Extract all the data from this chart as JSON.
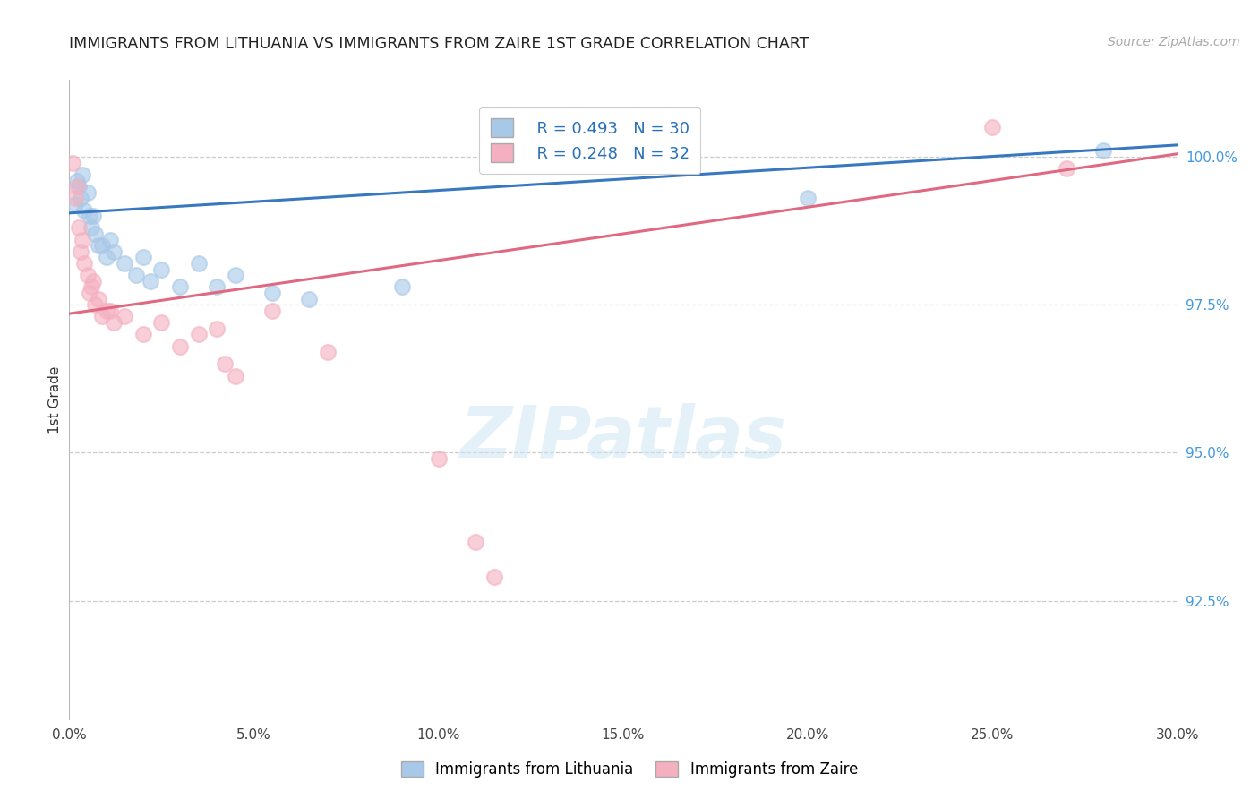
{
  "title": "IMMIGRANTS FROM LITHUANIA VS IMMIGRANTS FROM ZAIRE 1ST GRADE CORRELATION CHART",
  "source_text": "Source: ZipAtlas.com",
  "ylabel_left": "1st Grade",
  "x_tick_labels": [
    "0.0%",
    "5.0%",
    "10.0%",
    "15.0%",
    "20.0%",
    "25.0%",
    "30.0%"
  ],
  "x_tick_values": [
    0.0,
    5.0,
    10.0,
    15.0,
    20.0,
    25.0,
    30.0
  ],
  "y_tick_labels_right": [
    "92.5%",
    "95.0%",
    "97.5%",
    "100.0%"
  ],
  "y_tick_values_right": [
    92.5,
    95.0,
    97.5,
    100.0
  ],
  "xlim": [
    0.0,
    30.0
  ],
  "ylim": [
    90.5,
    101.3
  ],
  "legend_label_blue": "Immigrants from Lithuania",
  "legend_label_pink": "Immigrants from Zaire",
  "r_blue": 0.493,
  "n_blue": 30,
  "r_pink": 0.248,
  "n_pink": 32,
  "blue_color": "#a8c8e8",
  "pink_color": "#f4b0c0",
  "trend_blue": "#3878c0",
  "trend_pink": "#e06880",
  "blue_x": [
    0.15,
    0.2,
    0.25,
    0.3,
    0.35,
    0.4,
    0.5,
    0.55,
    0.6,
    0.65,
    0.7,
    0.8,
    0.9,
    1.0,
    1.1,
    1.2,
    1.5,
    1.8,
    2.0,
    2.2,
    2.5,
    3.0,
    3.5,
    4.0,
    4.5,
    5.5,
    6.5,
    9.0,
    20.0,
    28.0
  ],
  "blue_y": [
    99.2,
    99.6,
    99.5,
    99.3,
    99.7,
    99.1,
    99.4,
    99.0,
    98.8,
    99.0,
    98.7,
    98.5,
    98.5,
    98.3,
    98.6,
    98.4,
    98.2,
    98.0,
    98.3,
    97.9,
    98.1,
    97.8,
    98.2,
    97.8,
    98.0,
    97.7,
    97.6,
    97.8,
    99.3,
    100.1
  ],
  "pink_x": [
    0.1,
    0.15,
    0.2,
    0.25,
    0.3,
    0.35,
    0.4,
    0.5,
    0.55,
    0.6,
    0.65,
    0.7,
    0.8,
    0.9,
    1.0,
    1.1,
    1.2,
    1.5,
    2.0,
    2.5,
    3.0,
    3.5,
    4.0,
    4.2,
    4.5,
    5.5,
    7.0,
    10.0,
    11.0,
    11.5,
    25.0,
    27.0
  ],
  "pink_y": [
    99.9,
    99.3,
    99.5,
    98.8,
    98.4,
    98.6,
    98.2,
    98.0,
    97.7,
    97.8,
    97.9,
    97.5,
    97.6,
    97.3,
    97.4,
    97.4,
    97.2,
    97.3,
    97.0,
    97.2,
    96.8,
    97.0,
    97.1,
    96.5,
    96.3,
    97.4,
    96.7,
    94.9,
    93.5,
    92.9,
    100.5,
    99.8
  ],
  "watermark_text": "ZIPatlas",
  "background_color": "#ffffff",
  "grid_color": "#cccccc"
}
